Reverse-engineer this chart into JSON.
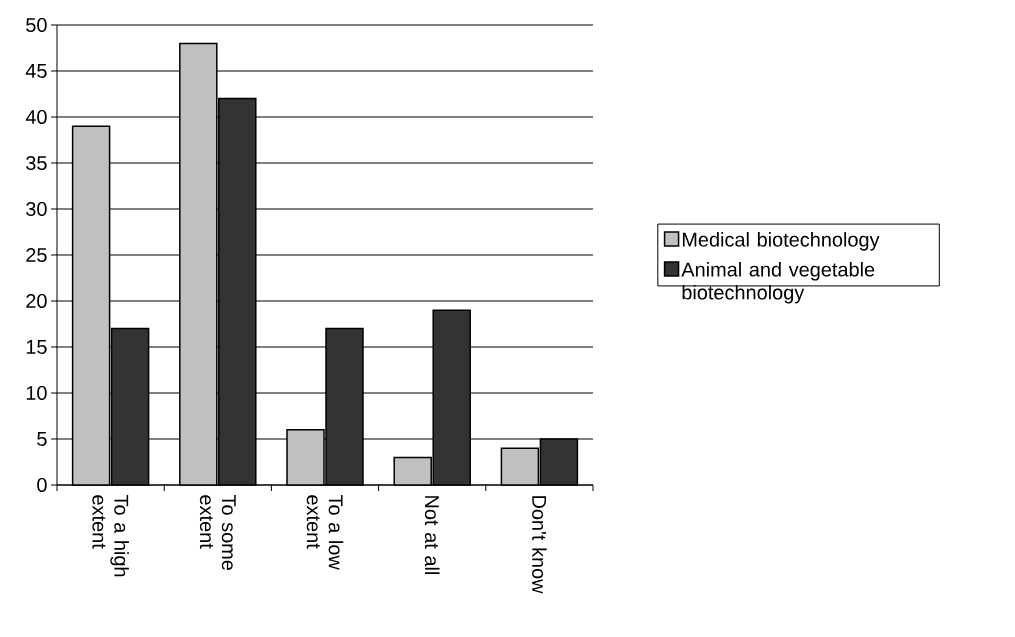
{
  "chart_data": {
    "type": "bar",
    "categories": [
      "To a high extent",
      "To some extent",
      "To a low extent",
      "Not at all",
      "Don't know"
    ],
    "series": [
      {
        "name": "Medical biotechnology",
        "color": "#c0c0c0",
        "values": [
          39,
          48,
          6,
          3,
          4
        ]
      },
      {
        "name": "Animal and vegetable biotechnology",
        "color": "#333333",
        "values": [
          17,
          42,
          17,
          19,
          5
        ]
      }
    ],
    "ylim": [
      0,
      50
    ],
    "yticks": [
      0,
      5,
      10,
      15,
      20,
      25,
      30,
      35,
      40,
      45,
      50
    ],
    "grid": "y",
    "legend": "right"
  }
}
